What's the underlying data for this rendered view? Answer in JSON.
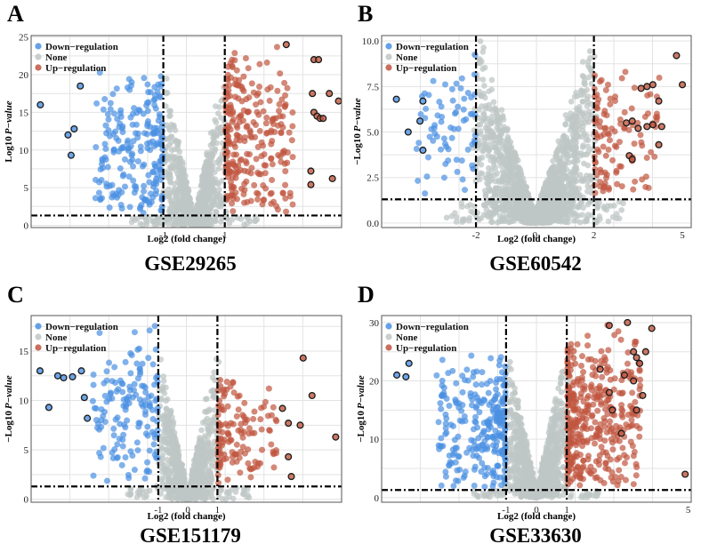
{
  "legend": {
    "down": "Down−regulation",
    "none": "None",
    "up": "Up−regulation"
  },
  "colors": {
    "down": "#4a90e2",
    "none": "#bfc7c6",
    "up": "#c0563f",
    "highlight_stroke": "#1a1a1a",
    "threshold": "#000000",
    "grid": "#e3e3e3",
    "frame": "#555555"
  },
  "chart_data": [
    {
      "panel": "A",
      "dataset": "GSE29265",
      "type": "scatter",
      "xlabel": "Log2 (fold change)",
      "ylabel_prefix": "Log10",
      "ylabel_italic": "P−value",
      "xlim": [
        -5.3,
        4.8
      ],
      "ylim": [
        -0.3,
        25.2
      ],
      "x_ticks": [
        {
          "value": -1,
          "label": "-1"
        },
        {
          "value": 1,
          "label": "1"
        }
      ],
      "y_ticks": [
        0,
        5,
        10,
        15,
        20,
        25
      ],
      "fc_threshold": 1,
      "p_threshold": 1.3,
      "legend_position": "top-left",
      "down_max": 21.5,
      "up_max": 24,
      "none_max": 21,
      "down_x_range": [
        -3.2,
        -1.0
      ],
      "up_x_range": [
        1.0,
        3.2
      ],
      "n_down": 220,
      "n_up": 260,
      "n_none": 900,
      "highlight_down": [
        [
          -5.0,
          16
        ],
        [
          -3.7,
          18.5
        ],
        [
          -4.1,
          12
        ],
        [
          -3.9,
          12.8
        ],
        [
          -4.0,
          9.3
        ]
      ],
      "highlight_up": [
        [
          3.0,
          24
        ],
        [
          3.9,
          22
        ],
        [
          4.05,
          22
        ],
        [
          3.85,
          17.5
        ],
        [
          4.4,
          17.5
        ],
        [
          4.7,
          16.5
        ],
        [
          3.9,
          15
        ],
        [
          4.0,
          14.5
        ],
        [
          4.1,
          14.2
        ],
        [
          4.2,
          14.2
        ],
        [
          3.8,
          7.2
        ],
        [
          4.5,
          6.2
        ],
        [
          3.8,
          5.4
        ]
      ]
    },
    {
      "panel": "B",
      "dataset": "GSE60542",
      "type": "scatter",
      "xlabel": "Log2 (fold change)",
      "ylabel_prefix": "−Log10",
      "ylabel_italic": "P−value",
      "xlim": [
        -5.2,
        5.3
      ],
      "ylim": [
        -0.25,
        10.3
      ],
      "x_ticks": [
        {
          "value": -2,
          "label": "-2"
        },
        {
          "value": 0,
          "label": "0"
        },
        {
          "value": 2,
          "label": "2"
        },
        {
          "value": 5,
          "label": "5"
        }
      ],
      "y_ticks": [
        {
          "value": 0,
          "label": "0.0"
        },
        {
          "value": 2.5,
          "label": "2.5"
        },
        {
          "value": 5,
          "label": "5.0"
        },
        {
          "value": 7.5,
          "label": "7.5"
        },
        {
          "value": 10,
          "label": "10.0"
        }
      ],
      "fc_threshold": 2,
      "p_threshold": 1.3,
      "legend_position": "top-left",
      "down_max": 9.5,
      "up_max": 9.3,
      "none_max": 10.1,
      "down_x_range": [
        -4.0,
        -2.0
      ],
      "up_x_range": [
        2.0,
        4.2
      ],
      "n_down": 70,
      "n_up": 110,
      "n_none": 1800,
      "highlight_down": [
        [
          -4.7,
          6.8
        ],
        [
          -3.8,
          6.7
        ],
        [
          -4.3,
          5.0
        ],
        [
          -3.9,
          5.6
        ],
        [
          -3.8,
          4.0
        ]
      ],
      "highlight_up": [
        [
          4.8,
          9.2
        ],
        [
          3.8,
          7.5
        ],
        [
          4.0,
          7.6
        ],
        [
          3.6,
          7.4
        ],
        [
          5.0,
          7.6
        ],
        [
          4.2,
          6.7
        ],
        [
          3.1,
          5.5
        ],
        [
          3.3,
          5.6
        ],
        [
          3.5,
          5.2
        ],
        [
          3.8,
          5.3
        ],
        [
          4.0,
          5.4
        ],
        [
          4.3,
          5.3
        ],
        [
          4.2,
          4.3
        ],
        [
          3.2,
          3.7
        ],
        [
          3.3,
          3.5
        ]
      ]
    },
    {
      "panel": "C",
      "dataset": "GSE151179",
      "type": "scatter",
      "xlabel": "Log2 (fold change)",
      "ylabel_prefix": "−Log10",
      "ylabel_italic": "P−value",
      "xlim": [
        -5.3,
        5.2
      ],
      "ylim": [
        -0.3,
        18.6
      ],
      "x_ticks": [
        {
          "value": -1,
          "label": "-1"
        },
        {
          "value": 0,
          "label": "0"
        },
        {
          "value": 1,
          "label": "1"
        }
      ],
      "y_ticks": [
        0,
        5,
        10,
        15
      ],
      "fc_threshold": 1,
      "p_threshold": 1.3,
      "legend_position": "top-left",
      "down_max": 18,
      "up_max": 13,
      "none_max": 15,
      "down_x_range": [
        -3.2,
        -1.0
      ],
      "up_x_range": [
        1.0,
        3.0
      ],
      "n_down": 150,
      "n_up": 130,
      "n_none": 900,
      "highlight_down": [
        [
          -5.0,
          13
        ],
        [
          -4.4,
          12.5
        ],
        [
          -4.2,
          12.3
        ],
        [
          -3.9,
          12.4
        ],
        [
          -3.6,
          13
        ],
        [
          -4.7,
          9.3
        ],
        [
          -3.5,
          10.3
        ],
        [
          -3.4,
          8.2
        ]
      ],
      "highlight_up": [
        [
          3.9,
          14.3
        ],
        [
          4.2,
          10.5
        ],
        [
          3.2,
          9.2
        ],
        [
          3.4,
          7.7
        ],
        [
          3.8,
          7.5
        ],
        [
          5.0,
          6.3
        ],
        [
          3.4,
          4.3
        ],
        [
          3.5,
          2.3
        ]
      ]
    },
    {
      "panel": "D",
      "dataset": "GSE33630",
      "type": "scatter",
      "xlabel": "Log2 (fold change)",
      "ylabel_prefix": "−Log10",
      "ylabel_italic": "P−value",
      "xlim": [
        -5.1,
        5.1
      ],
      "ylim": [
        -0.8,
        31.2
      ],
      "x_ticks": [
        {
          "value": -1,
          "label": "-1"
        },
        {
          "value": 0,
          "label": "0"
        },
        {
          "value": 1,
          "label": "1"
        },
        {
          "value": 5,
          "label": "5"
        }
      ],
      "y_ticks": [
        0,
        10,
        20,
        30
      ],
      "fc_threshold": 1,
      "p_threshold": 1.3,
      "legend_position": "top-left",
      "down_max": 27,
      "up_max": 30.5,
      "none_max": 25,
      "down_x_range": [
        -3.3,
        -1.0
      ],
      "up_x_range": [
        1.0,
        3.4
      ],
      "n_down": 260,
      "n_up": 380,
      "n_none": 1100,
      "highlight_down": [
        [
          -4.6,
          21
        ],
        [
          -4.3,
          20.7
        ],
        [
          -4.2,
          23
        ]
      ],
      "highlight_up": [
        [
          3.0,
          30
        ],
        [
          2.4,
          29.5
        ],
        [
          3.8,
          29
        ],
        [
          3.2,
          25
        ],
        [
          3.3,
          24
        ],
        [
          3.4,
          23
        ],
        [
          3.6,
          25
        ],
        [
          2.1,
          22
        ],
        [
          2.9,
          21
        ],
        [
          3.2,
          20
        ],
        [
          2.4,
          18
        ],
        [
          3.5,
          17.5
        ],
        [
          2.5,
          15
        ],
        [
          3.3,
          15
        ],
        [
          2.8,
          11
        ],
        [
          4.9,
          4
        ]
      ]
    }
  ]
}
